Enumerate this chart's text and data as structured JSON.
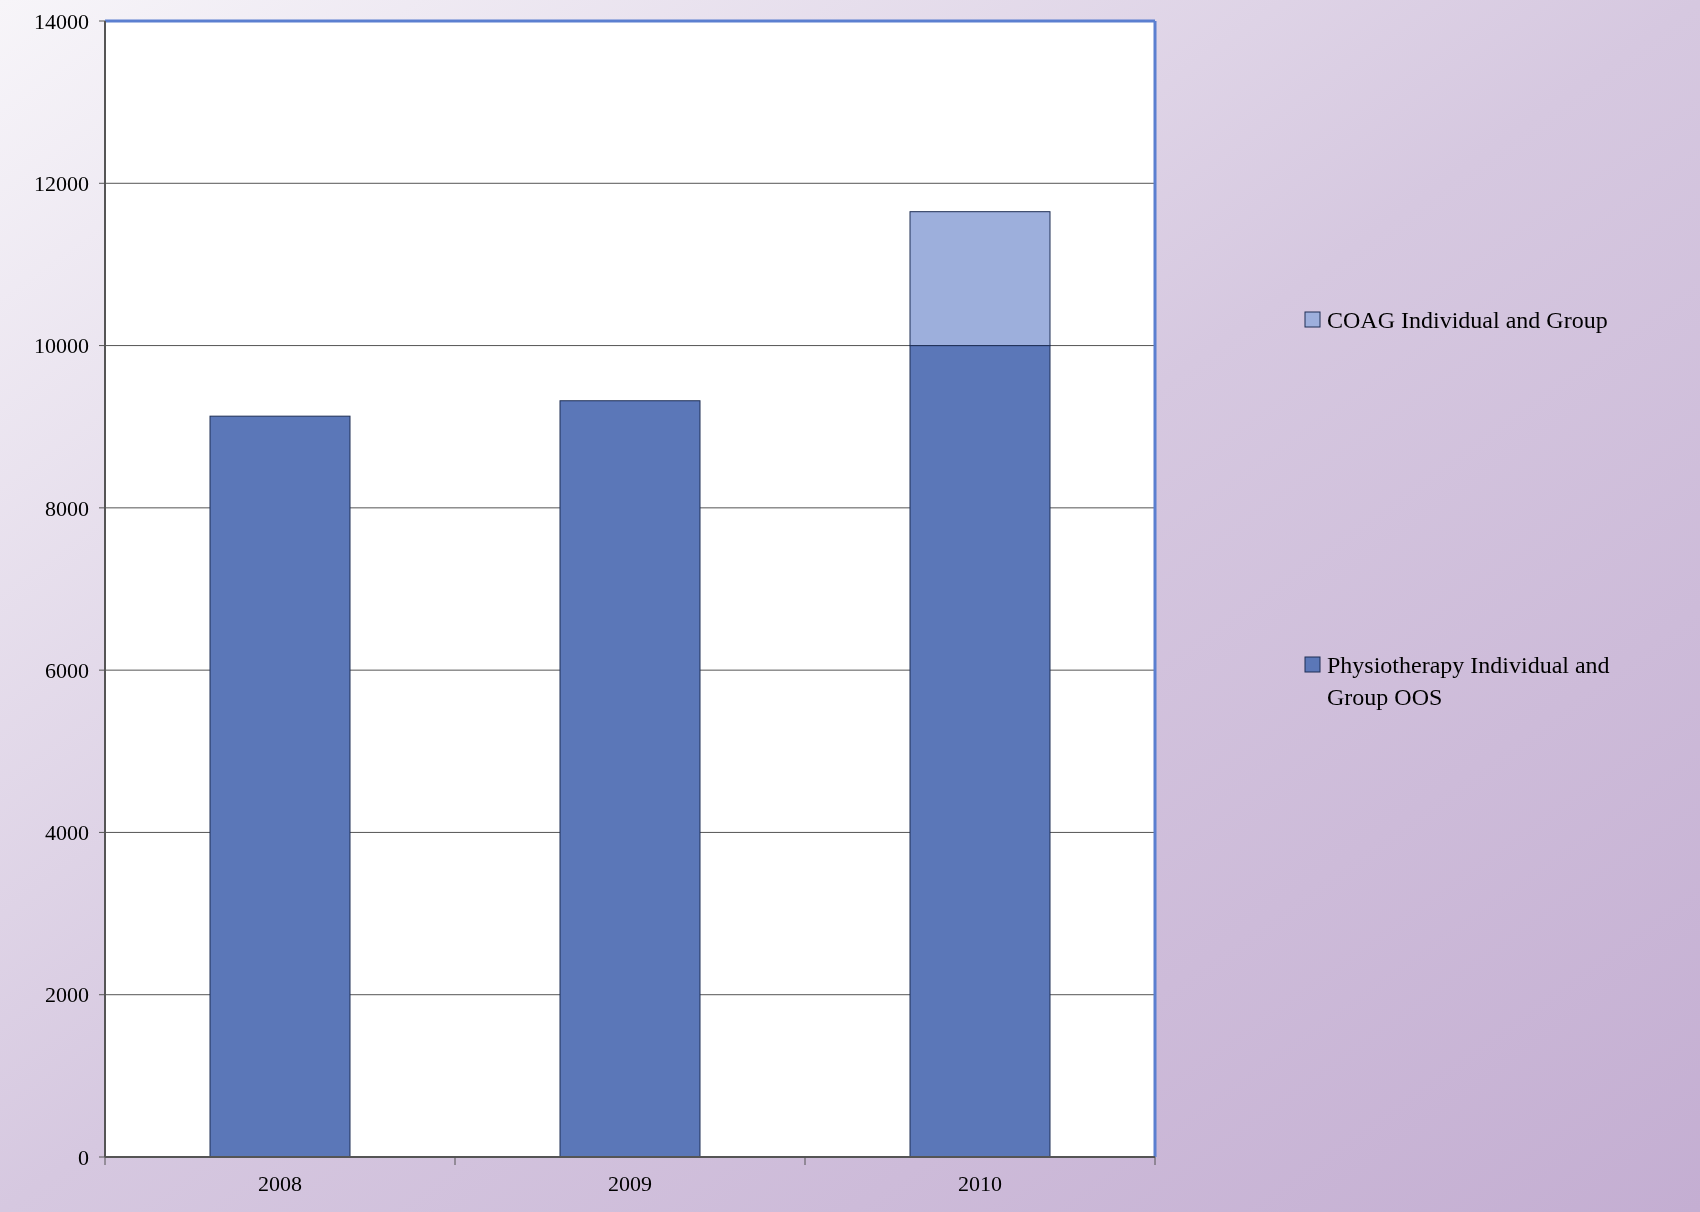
{
  "chart_data": {
    "type": "bar",
    "stacked": true,
    "categories": [
      "2008",
      "2009",
      "2010"
    ],
    "series": [
      {
        "name": "Physiotherapy Individual and Group OOS",
        "color": "#5b77b8",
        "values": [
          9130,
          9320,
          10000
        ]
      },
      {
        "name": "COAG Individual and Group",
        "color": "#9dafdc",
        "values": [
          null,
          null,
          1650
        ]
      }
    ],
    "ylim": [
      0,
      14000
    ],
    "yticks": [
      0,
      2000,
      4000,
      6000,
      8000,
      10000,
      12000,
      14000
    ],
    "grid": "y",
    "legend": "right"
  }
}
